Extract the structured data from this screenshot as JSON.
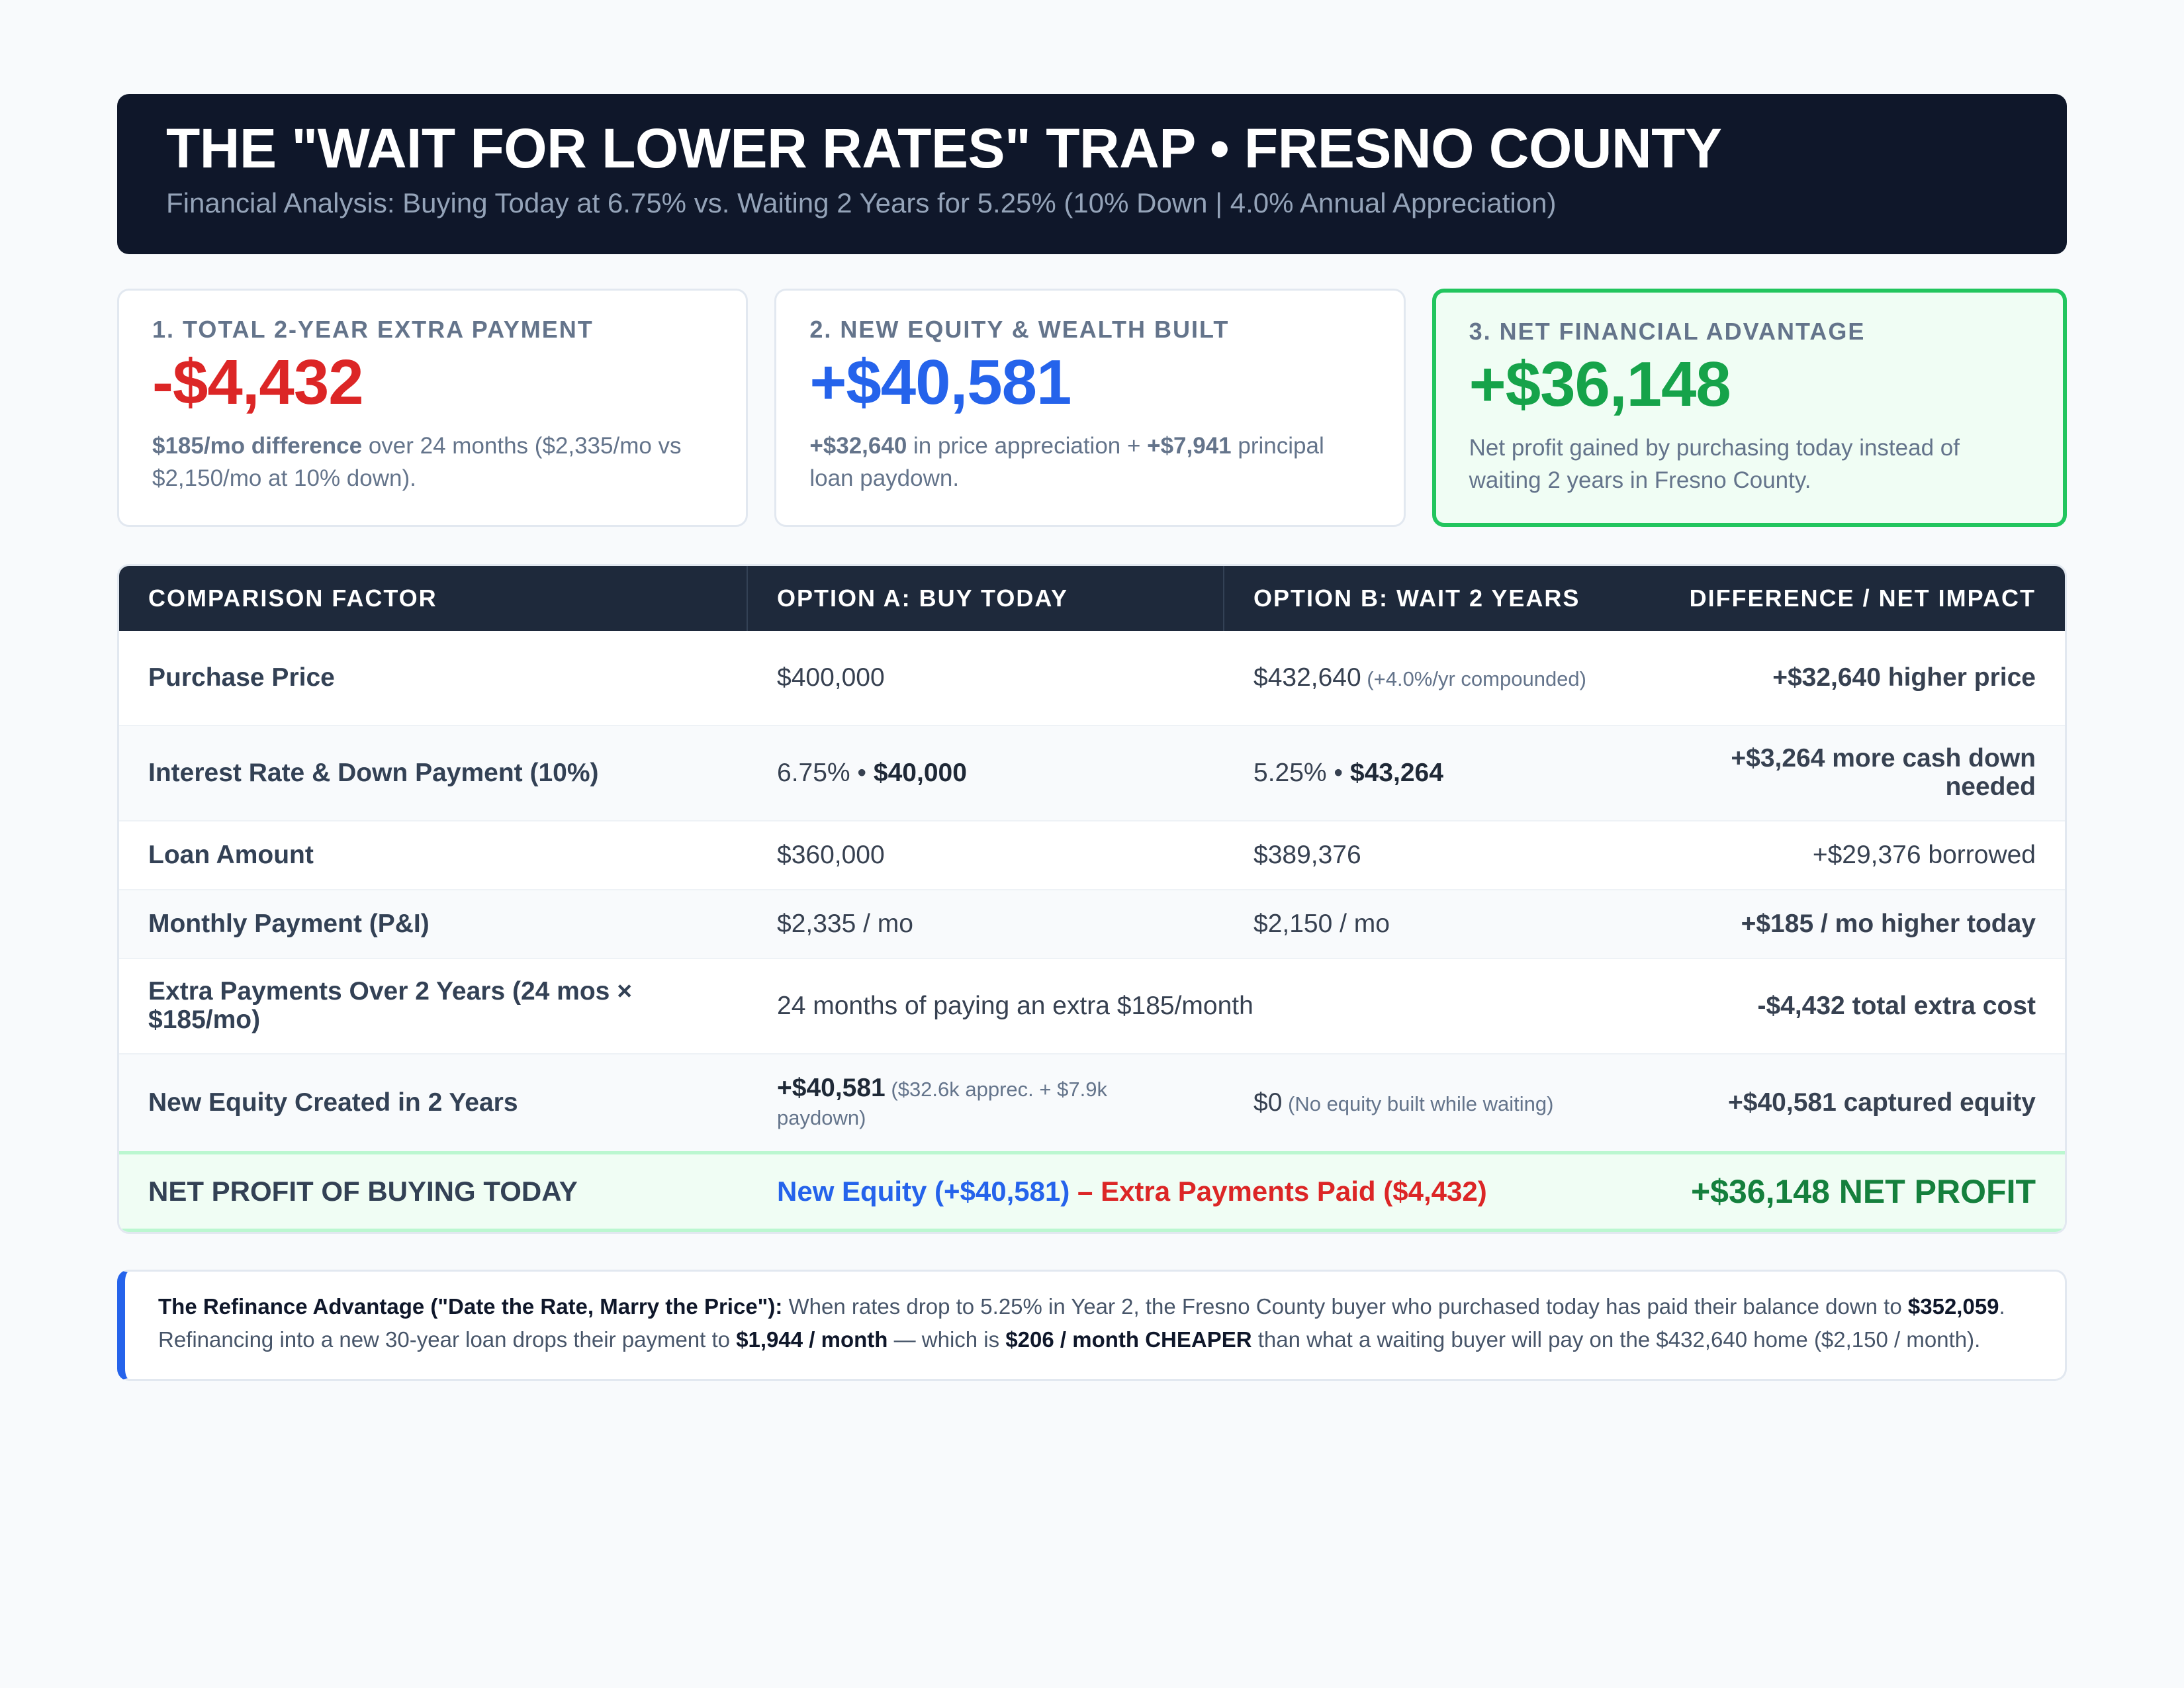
{
  "header": {
    "title": "THE \"WAIT FOR LOWER RATES\" TRAP • FRESNO COUNTY",
    "subtitle": "Financial Analysis: Buying Today at 6.75% vs. Waiting 2 Years for 5.25% (10% Down | 4.0% Annual Appreciation)"
  },
  "cards": [
    {
      "label": "1. TOTAL 2-YEAR EXTRA PAYMENT",
      "value": "-$4,432",
      "desc_bold": "$185/mo difference",
      "desc_rest": " over 24 months ($2,335/mo vs $2,150/mo at 10% down)."
    },
    {
      "label": "2. NEW EQUITY & WEALTH BUILT",
      "value": "+$40,581",
      "desc_bold1": "+$32,640",
      "desc_mid": " in price appreciation + ",
      "desc_bold2": "+$7,941",
      "desc_rest": " principal loan paydown."
    },
    {
      "label": "3. NET FINANCIAL ADVANTAGE",
      "value": "+$36,148",
      "desc": "Net profit gained by purchasing today instead of waiting 2 years in Fresno County."
    }
  ],
  "table": {
    "headers": [
      "COMPARISON FACTOR",
      "OPTION A: BUY TODAY",
      "OPTION B: WAIT 2 YEARS",
      "DIFFERENCE / NET IMPACT"
    ],
    "rows": {
      "price": {
        "factor": "Purchase Price",
        "a": "$400,000",
        "b_main": "$432,640",
        "b_note": " (+4.0%/yr compounded)",
        "impact": "+$32,640 higher price"
      },
      "rate": {
        "factor": "Interest Rate & Down Payment (10%)",
        "a_rate": "6.75% • ",
        "a_down": "$40,000",
        "b_rate": "5.25% • ",
        "b_down": "$43,264",
        "impact": "+$3,264 more cash down needed"
      },
      "loan": {
        "factor": "Loan Amount",
        "a": "$360,000",
        "b": "$389,376",
        "impact": "+$29,376 borrowed"
      },
      "payment": {
        "factor": "Monthly Payment (P&I)",
        "a": "$2,335 / mo",
        "b": "$2,150 / mo",
        "impact": "+$185 / mo higher today"
      },
      "extra": {
        "factor": "Extra Payments Over 2 Years (24 mos × $185/mo)",
        "span": "24 months of paying an extra $185/month",
        "impact": "-$4,432 total extra cost"
      },
      "equity": {
        "factor": "New Equity Created in 2 Years",
        "a_main": "+$40,581",
        "a_note": " ($32.6k apprec. + $7.9k paydown)",
        "b_main": "$0",
        "b_note": " (No equity built while waiting)",
        "impact": "+$40,581 captured equity"
      },
      "net": {
        "factor": "NET PROFIT OF BUYING TODAY",
        "formula_blue": "New Equity (+$40,581)",
        "formula_sep": " – ",
        "formula_red": "Extra Payments Paid ($4,432)",
        "impact": "+$36,148 NET PROFIT"
      }
    }
  },
  "note": {
    "lead": "The Refinance Advantage (\"Date the Rate, Marry the Price\"):",
    "t1": " When rates drop to 5.25% in Year 2, the Fresno County buyer who purchased today has paid their balance down to ",
    "b1": "$352,059",
    "t2": ". Refinancing into a new 30-year loan drops their payment to ",
    "b2": "$1,944 / month",
    "t3": " — which is ",
    "b3": "$206 / month CHEAPER",
    "t4": " than what a waiting buyer will pay on the $432,640 home ($2,150 / month)."
  }
}
